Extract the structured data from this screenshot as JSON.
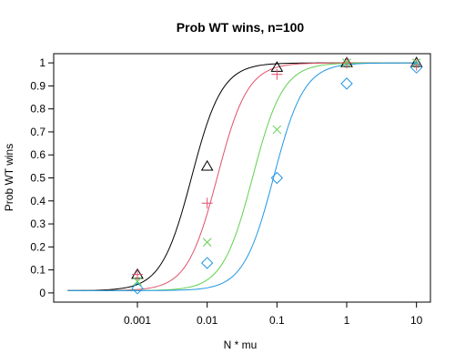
{
  "chart_data": {
    "type": "line",
    "title": "Prob WT wins, n=100",
    "xlabel": "N * mu",
    "ylabel": "Prob WT wins",
    "x_scale": "log",
    "xlim": [
      0.0001,
      10
    ],
    "ylim": [
      0,
      1
    ],
    "x_ticks": [
      {
        "value": 0.001,
        "label": "0.001"
      },
      {
        "value": 0.01,
        "label": "0.01"
      },
      {
        "value": 0.1,
        "label": "0.1"
      },
      {
        "value": 1,
        "label": "1"
      },
      {
        "value": 10,
        "label": "10"
      }
    ],
    "y_ticks": [
      {
        "value": 0,
        "label": "0"
      },
      {
        "value": 0.1,
        "label": "0.1"
      },
      {
        "value": 0.2,
        "label": "0.2"
      },
      {
        "value": 0.3,
        "label": "0.3"
      },
      {
        "value": 0.4,
        "label": "0.4"
      },
      {
        "value": 0.5,
        "label": "0.5"
      },
      {
        "value": 0.6,
        "label": "0.6"
      },
      {
        "value": 0.7,
        "label": "0.7"
      },
      {
        "value": 0.8,
        "label": "0.8"
      },
      {
        "value": 0.9,
        "label": "0.9"
      },
      {
        "value": 1,
        "label": "1"
      }
    ],
    "grid": false,
    "series": [
      {
        "color": "#000000",
        "marker": "triangle",
        "points": [
          {
            "x": 0.001,
            "y": 0.08
          },
          {
            "x": 0.01,
            "y": 0.55
          },
          {
            "x": 0.1,
            "y": 0.98
          },
          {
            "x": 1,
            "y": 1.0
          },
          {
            "x": 10,
            "y": 1.0
          }
        ],
        "curve": {
          "midpoint": 0.006,
          "slope": 2.0,
          "floor": 0.01
        }
      },
      {
        "color": "#DF536B",
        "marker": "plus",
        "points": [
          {
            "x": 0.001,
            "y": 0.08
          },
          {
            "x": 0.01,
            "y": 0.39
          },
          {
            "x": 0.1,
            "y": 0.95
          },
          {
            "x": 1,
            "y": 1.0
          },
          {
            "x": 10,
            "y": 0.99
          }
        ],
        "curve": {
          "midpoint": 0.014,
          "slope": 2.0,
          "floor": 0.01
        }
      },
      {
        "color": "#61D04F",
        "marker": "cross",
        "points": [
          {
            "x": 0.001,
            "y": 0.05
          },
          {
            "x": 0.01,
            "y": 0.22
          },
          {
            "x": 0.1,
            "y": 0.71
          },
          {
            "x": 1,
            "y": 1.0
          },
          {
            "x": 10,
            "y": 1.0
          }
        ],
        "curve": {
          "midpoint": 0.045,
          "slope": 2.0,
          "floor": 0.01
        }
      },
      {
        "color": "#2297E6",
        "marker": "diamond",
        "points": [
          {
            "x": 0.001,
            "y": 0.02
          },
          {
            "x": 0.01,
            "y": 0.13
          },
          {
            "x": 0.1,
            "y": 0.5
          },
          {
            "x": 1,
            "y": 0.91
          },
          {
            "x": 10,
            "y": 0.98
          }
        ],
        "curve": {
          "midpoint": 0.09,
          "slope": 2.0,
          "floor": 0.01
        }
      }
    ]
  }
}
